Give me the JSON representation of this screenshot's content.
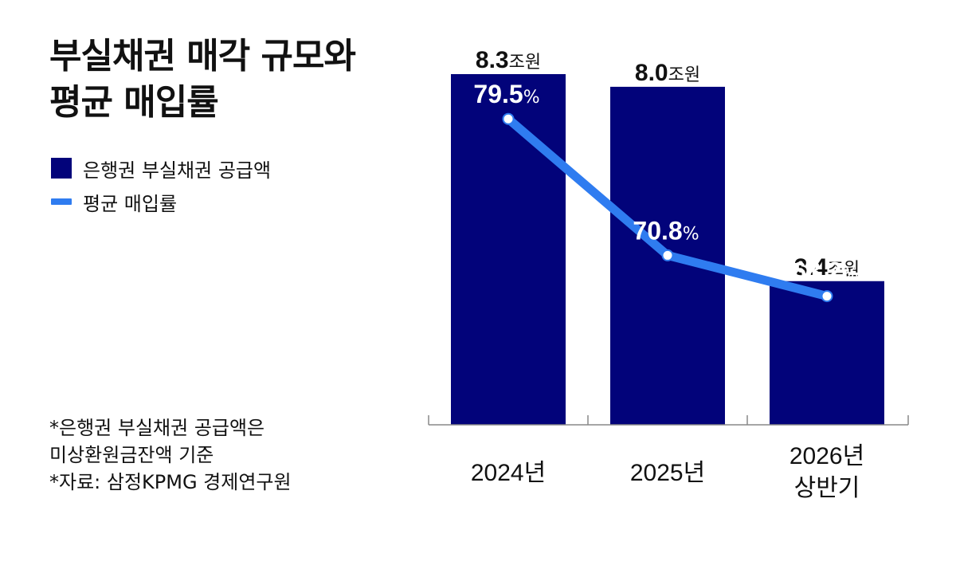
{
  "title_lines": [
    "부실채권 매각 규모와",
    "평균 매입률"
  ],
  "legend": [
    {
      "label": "은행권 부실채권 공급액",
      "kind": "bar"
    },
    {
      "label": "평균 매입률",
      "kind": "line"
    }
  ],
  "notes": [
    "*은행권 부실채권 공급액은",
    "미상환원금잔액 기준",
    "*자료: 삼정KPMG 경제연구원"
  ],
  "colors": {
    "bar": "#02037a",
    "line": "#2f7cf0",
    "axis": "#888888"
  },
  "chart_data": {
    "type": "bar",
    "categories": [
      [
        "2024년"
      ],
      [
        "2025년"
      ],
      [
        "2026년",
        "상반기"
      ]
    ],
    "series": [
      {
        "name": "은행권 부실채권 공급액",
        "type": "bar",
        "values": [
          8.3,
          8.0,
          3.4
        ],
        "labels": [
          "8.3",
          "8.0",
          "3.4"
        ],
        "unit": "조원"
      },
      {
        "name": "평균 매입률",
        "type": "line",
        "values": [
          79.5,
          70.8,
          68.2
        ],
        "labels": [
          "79.5",
          "70.8",
          "68.2"
        ],
        "unit": "%"
      }
    ],
    "ylim": [
      0,
      8.3
    ],
    "line_ylim": [
      60,
      82
    ],
    "grid": false,
    "legend_position": "left"
  }
}
